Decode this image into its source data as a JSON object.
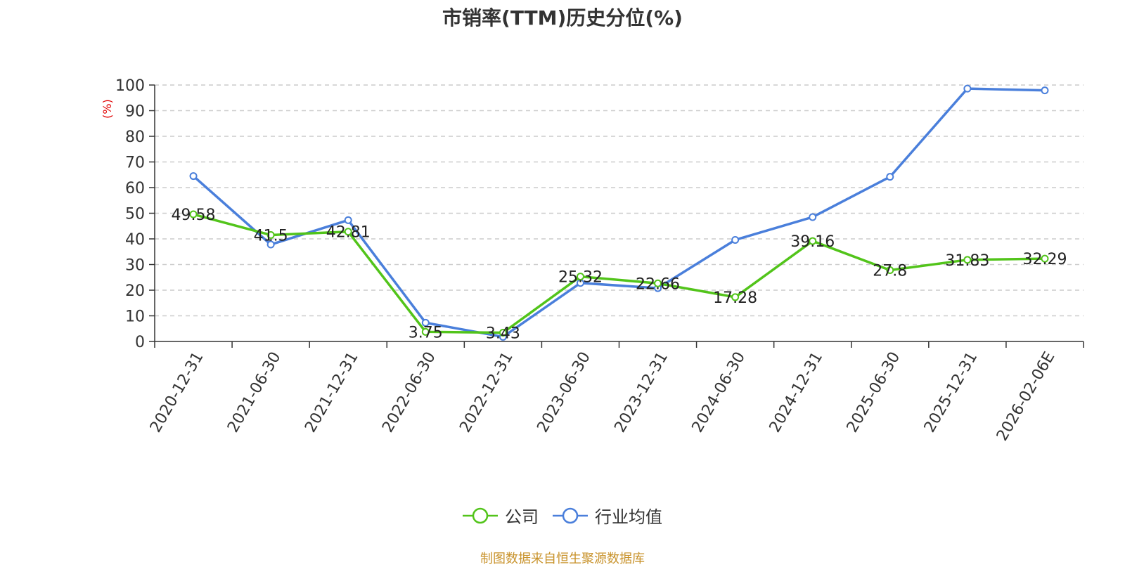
{
  "chart_data": {
    "type": "line",
    "title": "市销率(TTM)历史分位(%)",
    "ylabel": "(%)",
    "xlabel": "",
    "categories": [
      "2020-12-31",
      "2021-06-30",
      "2021-12-31",
      "2022-06-30",
      "2022-12-31",
      "2023-06-30",
      "2023-12-31",
      "2024-06-30",
      "2024-12-31",
      "2025-06-30",
      "2025-12-31",
      "2026-02-06E"
    ],
    "ylim": [
      0,
      100
    ],
    "yticks": [
      0,
      10,
      20,
      30,
      40,
      50,
      60,
      70,
      80,
      90,
      100
    ],
    "grid": true,
    "legend_position": "bottom",
    "series": [
      {
        "name": "公司",
        "color": "#52c41a",
        "show_labels": true,
        "values": [
          49.58,
          41.5,
          42.81,
          3.75,
          3.43,
          25.32,
          22.66,
          17.28,
          39.16,
          27.8,
          31.83,
          32.29
        ]
      },
      {
        "name": "行业均值",
        "color": "#4a7fdb",
        "show_labels": false,
        "values": [
          64.5,
          37.8,
          47.3,
          7.3,
          1.8,
          22.8,
          20.8,
          39.6,
          48.5,
          64.2,
          98.6,
          97.9
        ]
      }
    ]
  },
  "source_note": "制图数据来自恒生聚源数据库"
}
